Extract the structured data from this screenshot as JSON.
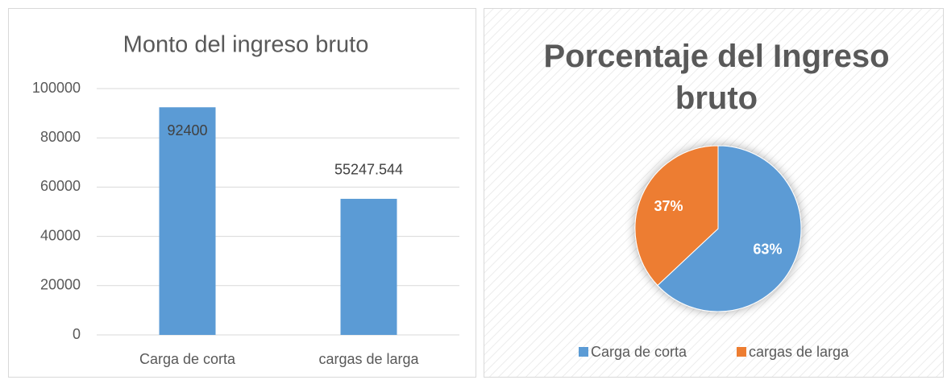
{
  "chart_data": [
    {
      "type": "bar",
      "title": "Monto del ingreso bruto",
      "categories": [
        "Carga de corta",
        "cargas de larga"
      ],
      "values": [
        92400,
        55247.544
      ],
      "color": "#5b9bd5",
      "ylim": [
        0,
        100000
      ],
      "yticks": [
        0,
        20000,
        40000,
        60000,
        80000,
        100000
      ],
      "grid": true
    },
    {
      "type": "pie",
      "title": "Porcentaje del Ingreso bruto",
      "categories": [
        "Carga de corta",
        "cargas de larga"
      ],
      "values": [
        63,
        37
      ],
      "value_labels": [
        "63%",
        "37%"
      ],
      "colors": [
        "#5b9bd5",
        "#ed7d31"
      ],
      "legend": "bottom"
    }
  ]
}
